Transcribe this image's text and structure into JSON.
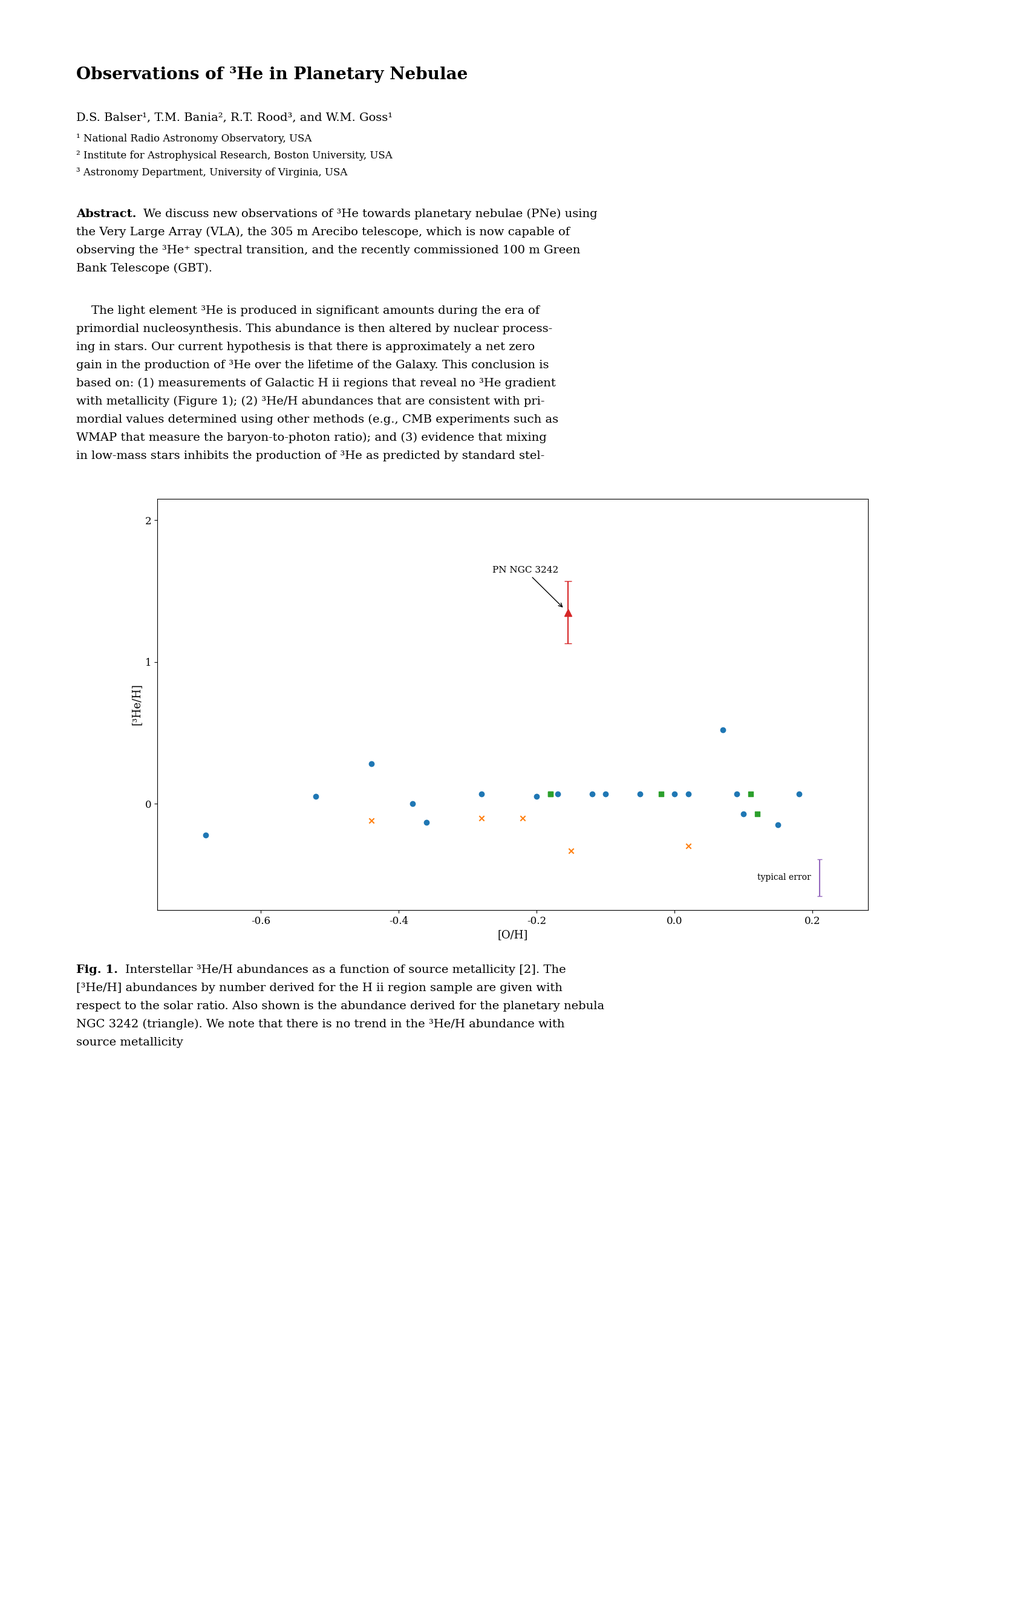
{
  "chart_data": {
    "type": "scatter",
    "title": "Observations of ³He in Planetary Nebulae",
    "authors": "D.S. Balser¹, T.M. Bania², R.T. Rood³, and W.M. Goss¹",
    "affiliations": [
      "¹ National Radio Astronomy Observatory, USA",
      "² Institute for Astrophysical Research, Boston University, USA",
      "³ Astronomy Department, University of Virginia, USA"
    ],
    "abstract_heading": "Abstract.",
    "abstract_lines": [
      "We discuss new observations of ³He towards planetary nebulae (PNe) using",
      "the Very Large Array (VLA), the 305 m Arecibo telescope, which is now capable of",
      "observing the ³He⁺ spectral transition, and the recently commissioned 100 m Green",
      "Bank Telescope (GBT)."
    ],
    "body_lines": [
      "    The light element ³He is produced in significant amounts during the era of",
      "primordial nucleosynthesis. This abundance is then altered by nuclear process-",
      "ing in stars. Our current hypothesis is that there is approximately a net zero",
      "gain in the production of ³He over the lifetime of the Galaxy. This conclusion is",
      "based on: (1) measurements of Galactic H ii regions that reveal no ³He gradient",
      "with metallicity (Figure 1); (2) ³He/H abundances that are consistent with pri-",
      "mordial values determined using other methods (e.g., CMB experiments such as",
      "WMAP that measure the baryon-to-photon ratio); and (3) evidence that mixing",
      "in low-mass stars inhibits the production of ³He as predicted by standard stel-"
    ],
    "caption_heading": "Fig. 1.",
    "caption_lines": [
      "Interstellar ³He/H abundances as a function of source metallicity [2]. The",
      "[³He/H] abundances by number derived for the H ii region sample are given with",
      "respect to the solar ratio. Also shown is the abundance derived for the planetary nebula",
      "NGC 3242 (triangle). We note that there is no trend in the ³He/H abundance with",
      "source metallicity"
    ],
    "x_label": "[O/H]",
    "y_label": "[³He/H]",
    "series": [
      {
        "marker": "o",
        "x": [
          -0.68,
          -0.52,
          -0.44,
          -0.38,
          -0.36,
          -0.28,
          -0.2,
          -0.17,
          -0.12,
          -0.1,
          -0.05,
          0.0,
          0.02,
          0.07,
          0.09,
          0.1,
          0.15,
          0.18
        ],
        "values": [
          -0.22,
          0.05,
          0.28,
          0.0,
          -0.13,
          0.07,
          0.05,
          0.07,
          0.07,
          0.07,
          0.07,
          0.07,
          0.07,
          0.52,
          0.07,
          -0.07,
          -0.15,
          0.07
        ]
      },
      {
        "marker": "x",
        "x": [
          -0.44,
          -0.28,
          -0.22,
          -0.15,
          0.02
        ],
        "values": [
          -0.12,
          -0.1,
          -0.1,
          -0.33,
          -0.3
        ]
      },
      {
        "marker": "s",
        "x": [
          -0.18,
          -0.18,
          -0.02,
          0.11,
          0.12
        ],
        "values": [
          0.07,
          0.07,
          0.07,
          0.07,
          -0.07
        ]
      },
      {
        "marker": "^",
        "x": [
          -0.155
        ],
        "values": [
          1.35
        ],
        "yerr": [
          0.22
        ]
      }
    ],
    "annotations": [
      {
        "text": "PN NGC 3242",
        "x": -0.155,
        "y": 1.35
      }
    ],
    "typical_error": {
      "text": "typical error",
      "x": 0.21,
      "y": -0.52,
      "yerr": 0.13
    },
    "xlim": [
      -0.75,
      0.28
    ],
    "ylim": [
      -0.75,
      2.15
    ],
    "xticks": [
      -0.6,
      -0.4,
      -0.2,
      0.0,
      0.2
    ],
    "yticks": [
      0,
      1,
      2
    ]
  }
}
